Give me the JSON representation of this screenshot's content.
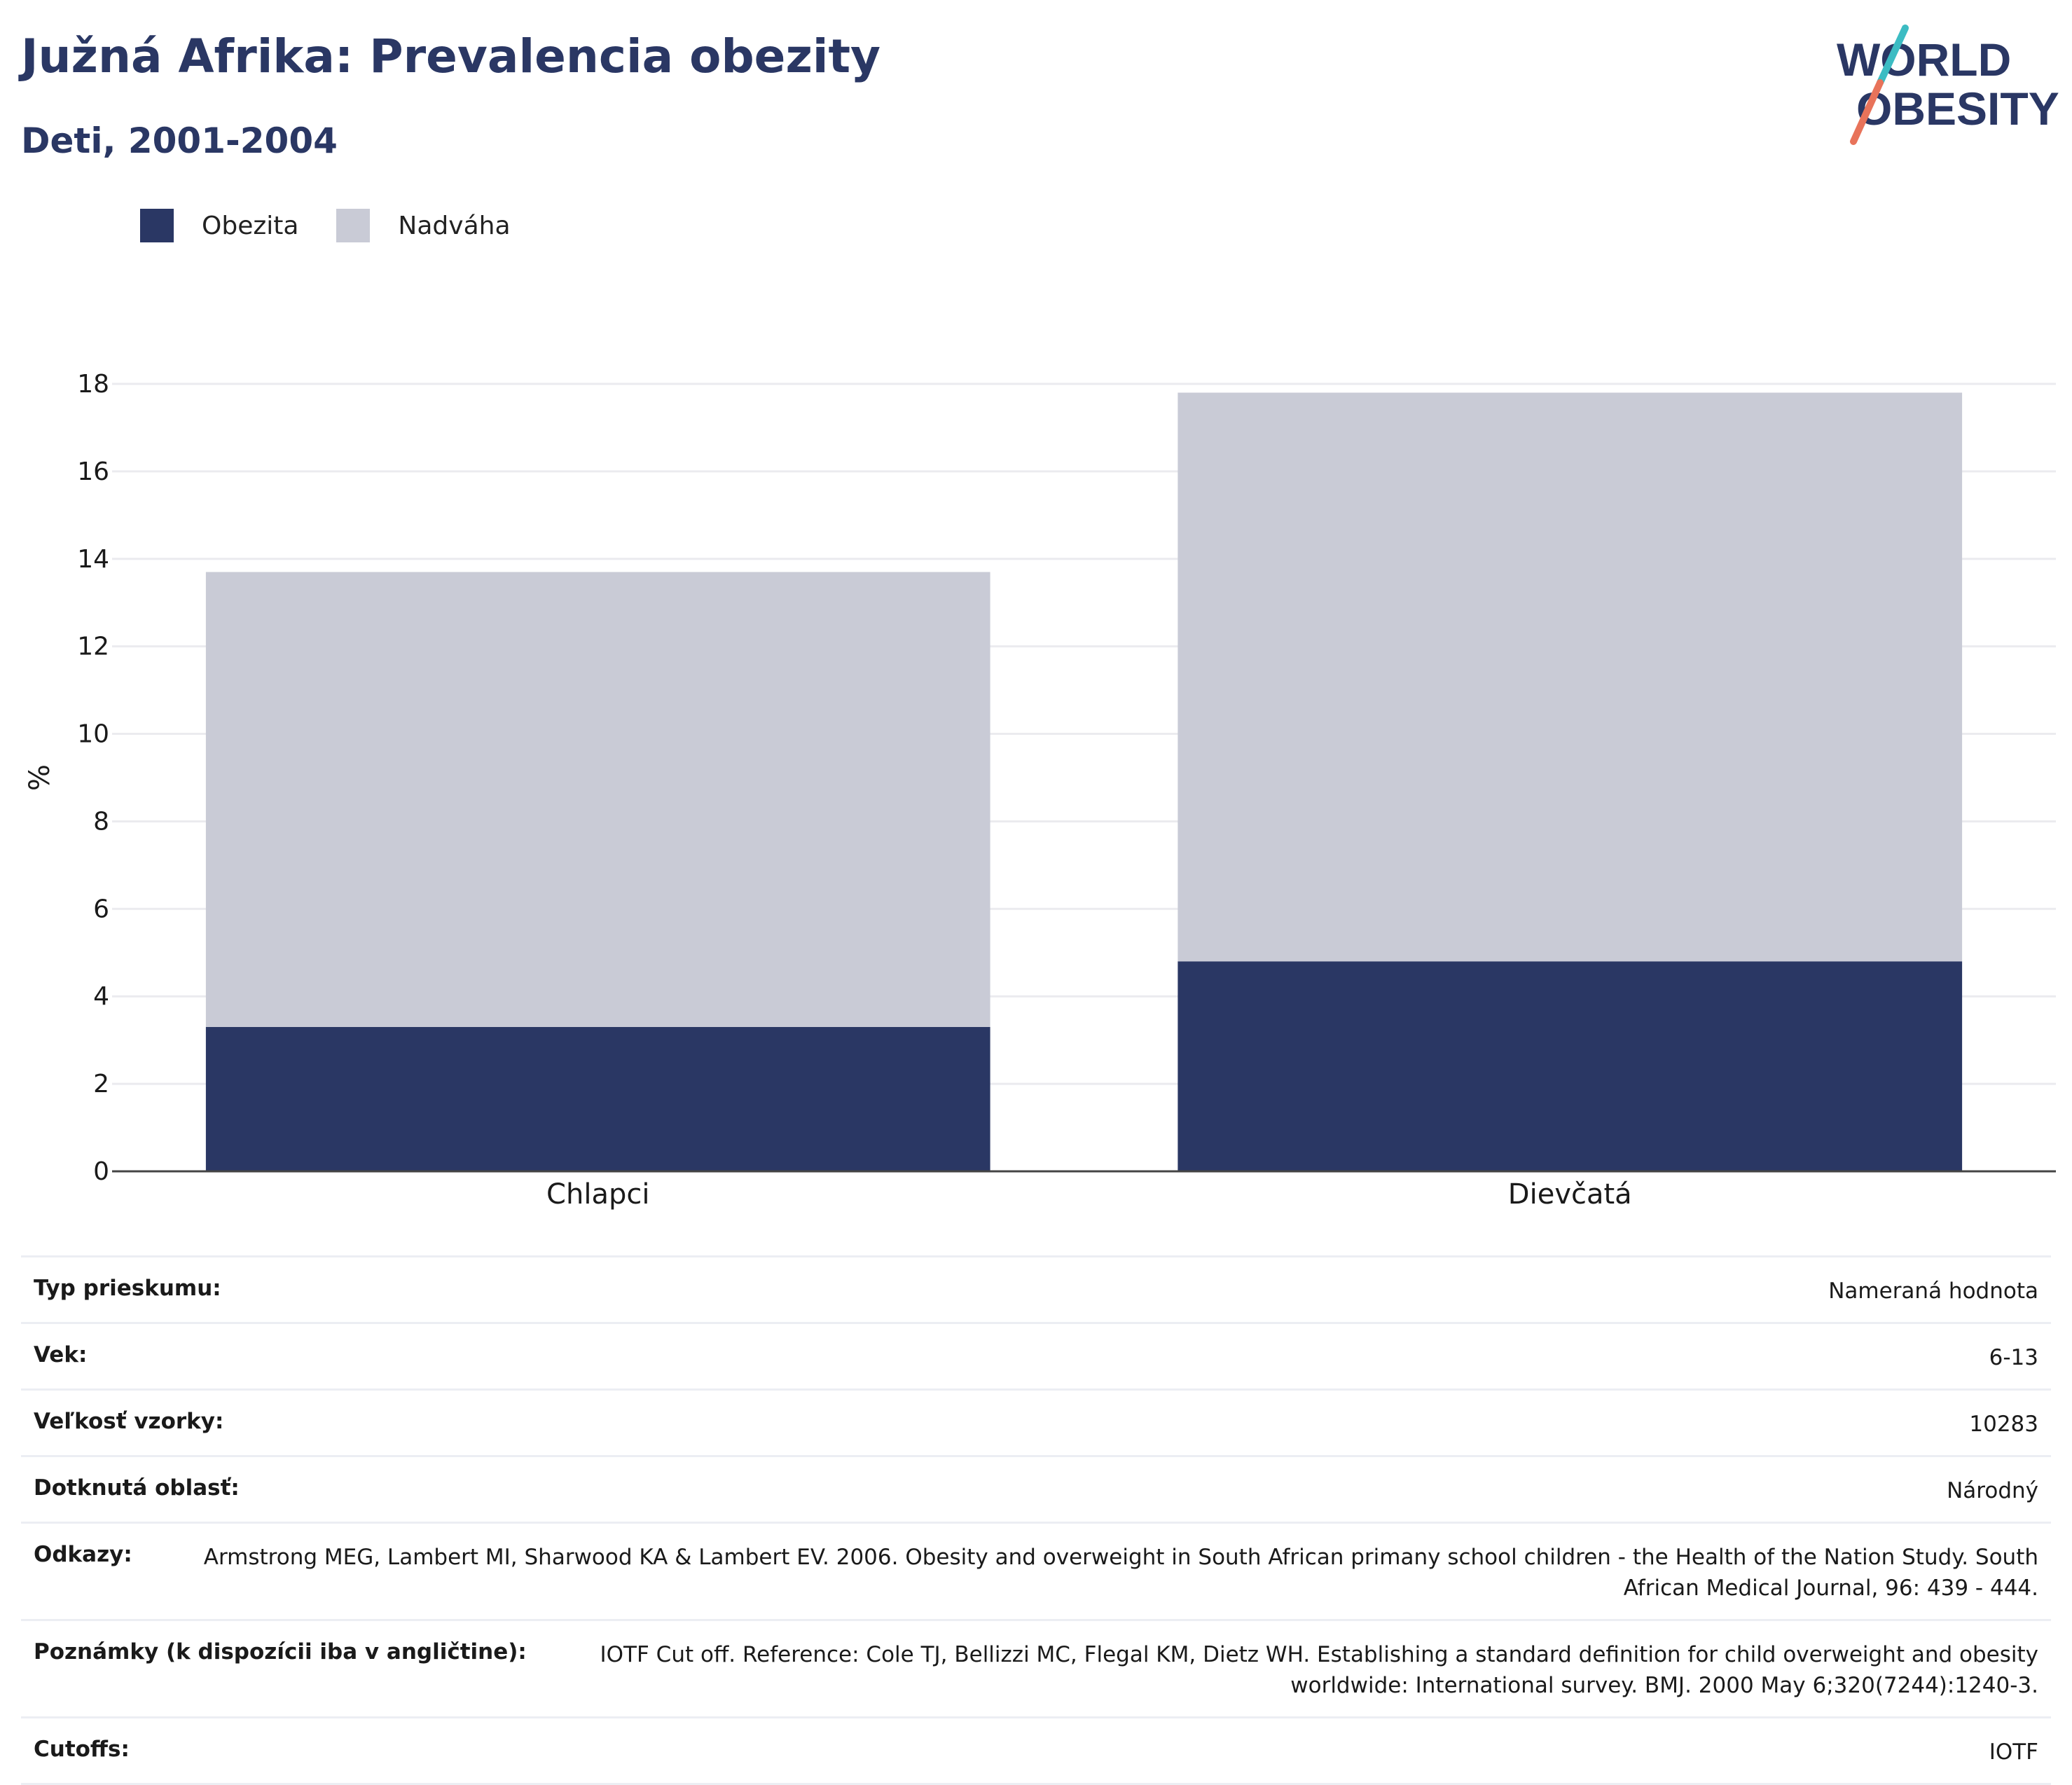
{
  "header": {
    "title": "Južná Afrika: Prevalencia obezity",
    "subtitle": "Deti, 2001-2004"
  },
  "logo": {
    "line1": "WORLD",
    "line2": "OBESITY",
    "colors": {
      "text": "#2a3764",
      "slash_top": "#3cbcc3",
      "slash_bottom": "#e8735a"
    }
  },
  "legend": [
    {
      "label": "Obezita",
      "color": "#2a3764"
    },
    {
      "label": "Nadváha",
      "color": "#c9cbd6"
    }
  ],
  "chart_data": {
    "type": "bar",
    "stacked": true,
    "categories": [
      "Chlapci",
      "Dievčatá"
    ],
    "series": [
      {
        "name": "Obezita",
        "values": [
          3.3,
          4.8
        ],
        "color": "#2a3764"
      },
      {
        "name": "Nadváha",
        "values": [
          10.4,
          13.0
        ],
        "color": "#c9cbd6"
      }
    ],
    "ylabel": "%",
    "xlabel": "",
    "ylim": [
      0,
      18
    ],
    "yticks": [
      0,
      2,
      4,
      6,
      8,
      10,
      12,
      14,
      16,
      18
    ],
    "grid": true
  },
  "info": [
    {
      "label": "Typ prieskumu:",
      "value": "Nameraná hodnota"
    },
    {
      "label": "Vek:",
      "value": "6-13"
    },
    {
      "label": "Veľkosť vzorky:",
      "value": "10283"
    },
    {
      "label": "Dotknutá oblasť:",
      "value": "Národný"
    },
    {
      "label": "Odkazy:",
      "value": "Armstrong MEG, Lambert MI, Sharwood KA & Lambert EV. 2006. Obesity and overweight in South African primany school children - the Health of the Nation Study. South African Medical Journal, 96: 439 - 444."
    },
    {
      "label": "Poznámky (k dispozícii iba v angličtine):",
      "value": "IOTF Cut off. Reference: Cole TJ, Bellizzi MC, Flegal KM, Dietz WH. Establishing a standard definition for child overweight and obesity worldwide: International survey. BMJ. 2000 May 6;320(7244):1240-3."
    },
    {
      "label": "Cutoffs:",
      "value": "IOTF"
    }
  ]
}
